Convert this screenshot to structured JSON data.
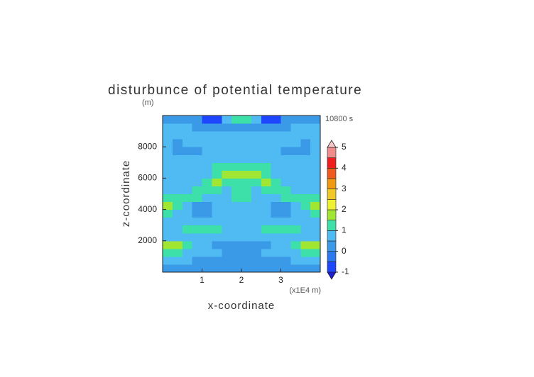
{
  "chart_data": {
    "type": "contour",
    "title": "disturbunce of potential temperature",
    "y_unit": "(m)",
    "time_label": "10800 s",
    "xlabel": "x-coordinate",
    "ylabel": "z-coordinate",
    "x_scale_label": "(x1E4 m)",
    "xlim": [
      0,
      4
    ],
    "ylim": [
      0,
      10000
    ],
    "xticks": [
      1,
      2,
      3
    ],
    "yticks": [
      2000,
      4000,
      6000,
      8000
    ],
    "x": [
      0.125,
      0.375,
      0.625,
      0.875,
      1.125,
      1.375,
      1.625,
      1.875,
      2.125,
      2.375,
      2.625,
      2.875,
      3.125,
      3.375,
      3.625,
      3.875
    ],
    "y": [
      250,
      750,
      1250,
      1750,
      2250,
      2750,
      3250,
      3750,
      4250,
      4750,
      5250,
      5750,
      6250,
      6750,
      7250,
      7750,
      8250,
      8750,
      9250,
      9750
    ],
    "z": [
      [
        0.3,
        0.3,
        0.3,
        0.3,
        0.3,
        0.2,
        0.2,
        0.2,
        0.2,
        0.2,
        0.2,
        0.3,
        0.3,
        0.3,
        0.3,
        0.3
      ],
      [
        0.6,
        0.5,
        0.5,
        0.4,
        0.4,
        0.4,
        0.3,
        0.3,
        0.3,
        0.3,
        0.4,
        0.4,
        0.4,
        0.5,
        0.5,
        0.6
      ],
      [
        1.2,
        1.1,
        0.8,
        0.6,
        0.5,
        0.5,
        0.4,
        0.4,
        0.4,
        0.4,
        0.5,
        0.5,
        0.6,
        0.8,
        1.1,
        1.2
      ],
      [
        1.7,
        1.6,
        1.2,
        0.8,
        0.6,
        0.4,
        0.3,
        0.3,
        0.3,
        0.3,
        0.4,
        0.6,
        0.8,
        1.2,
        1.6,
        1.7
      ],
      [
        0.7,
        0.8,
        0.9,
        0.8,
        0.7,
        0.6,
        0.5,
        0.5,
        0.5,
        0.5,
        0.6,
        0.7,
        0.8,
        0.9,
        0.8,
        0.7
      ],
      [
        0.5,
        0.6,
        1.1,
        1.2,
        1.2,
        1.1,
        0.6,
        0.7,
        0.7,
        0.6,
        1.1,
        1.2,
        1.2,
        1.1,
        0.6,
        0.5
      ],
      [
        0.6,
        0.5,
        0.6,
        0.7,
        0.6,
        0.7,
        0.5,
        0.6,
        0.6,
        0.5,
        0.7,
        0.6,
        0.7,
        0.6,
        0.5,
        0.6
      ],
      [
        1.1,
        0.7,
        0.5,
        0.4,
        0.4,
        0.5,
        0.6,
        0.7,
        0.7,
        0.6,
        0.5,
        0.4,
        0.4,
        0.5,
        0.7,
        1.1
      ],
      [
        1.7,
        1.1,
        0.6,
        0.4,
        0.4,
        0.6,
        0.7,
        0.8,
        0.8,
        0.7,
        0.6,
        0.4,
        0.4,
        0.6,
        1.1,
        1.7
      ],
      [
        1.1,
        1.2,
        1.2,
        1.1,
        0.9,
        0.8,
        0.7,
        1.1,
        1.1,
        0.7,
        0.8,
        0.9,
        1.1,
        1.2,
        1.2,
        1.1
      ],
      [
        0.7,
        0.8,
        0.9,
        1.1,
        1.2,
        1.1,
        0.8,
        1.2,
        1.2,
        0.8,
        1.1,
        1.2,
        1.1,
        0.9,
        0.8,
        0.7
      ],
      [
        0.6,
        0.6,
        0.7,
        0.8,
        1.1,
        1.6,
        1.2,
        1.1,
        1.1,
        1.2,
        1.6,
        1.1,
        0.8,
        0.7,
        0.6,
        0.6
      ],
      [
        0.5,
        0.5,
        0.6,
        0.7,
        0.9,
        1.2,
        1.7,
        1.6,
        1.6,
        1.7,
        1.2,
        0.9,
        0.7,
        0.6,
        0.5,
        0.5
      ],
      [
        0.6,
        0.5,
        0.5,
        0.6,
        0.7,
        1.1,
        1.2,
        1.1,
        1.1,
        1.2,
        1.1,
        0.7,
        0.6,
        0.5,
        0.5,
        0.6
      ],
      [
        0.7,
        0.6,
        0.5,
        0.5,
        0.6,
        0.7,
        0.8,
        0.7,
        0.7,
        0.8,
        0.7,
        0.6,
        0.5,
        0.5,
        0.6,
        0.7
      ],
      [
        0.6,
        0.4,
        0.3,
        0.4,
        0.5,
        0.6,
        0.7,
        0.6,
        0.6,
        0.7,
        0.6,
        0.5,
        0.4,
        0.3,
        0.4,
        0.6
      ],
      [
        0.5,
        0.4,
        0.5,
        0.6,
        0.6,
        0.7,
        0.6,
        0.5,
        0.5,
        0.6,
        0.7,
        0.6,
        0.6,
        0.5,
        0.4,
        0.5
      ],
      [
        0.6,
        0.6,
        0.6,
        0.5,
        0.5,
        0.5,
        0.5,
        0.5,
        0.5,
        0.5,
        0.5,
        0.5,
        0.5,
        0.6,
        0.6,
        0.6
      ],
      [
        0.5,
        0.5,
        0.5,
        0.4,
        0.3,
        0.2,
        0.1,
        0.2,
        0.2,
        0.1,
        0.2,
        0.3,
        0.4,
        0.5,
        0.5,
        0.5
      ],
      [
        0.4,
        0.4,
        0.3,
        0.1,
        -0.6,
        -0.6,
        0.6,
        1.2,
        1.2,
        0.6,
        -0.6,
        -0.6,
        0.1,
        0.3,
        0.4,
        0.4
      ]
    ],
    "colorbar": {
      "levels": [
        -1,
        -0.5,
        0,
        0.5,
        1,
        1.5,
        2,
        2.5,
        3,
        3.5,
        4,
        4.5,
        5
      ],
      "colors": [
        "#1e1ed2",
        "#1e46ff",
        "#2c78f0",
        "#3a9ae8",
        "#50baf2",
        "#3ce0a8",
        "#a0e632",
        "#f0f032",
        "#f0c828",
        "#f09a14",
        "#f05a1e",
        "#f01e1e",
        "#f08c8c",
        "#fac8c8"
      ],
      "ticks": [
        -1,
        0,
        1,
        2,
        3,
        4,
        5
      ]
    }
  }
}
